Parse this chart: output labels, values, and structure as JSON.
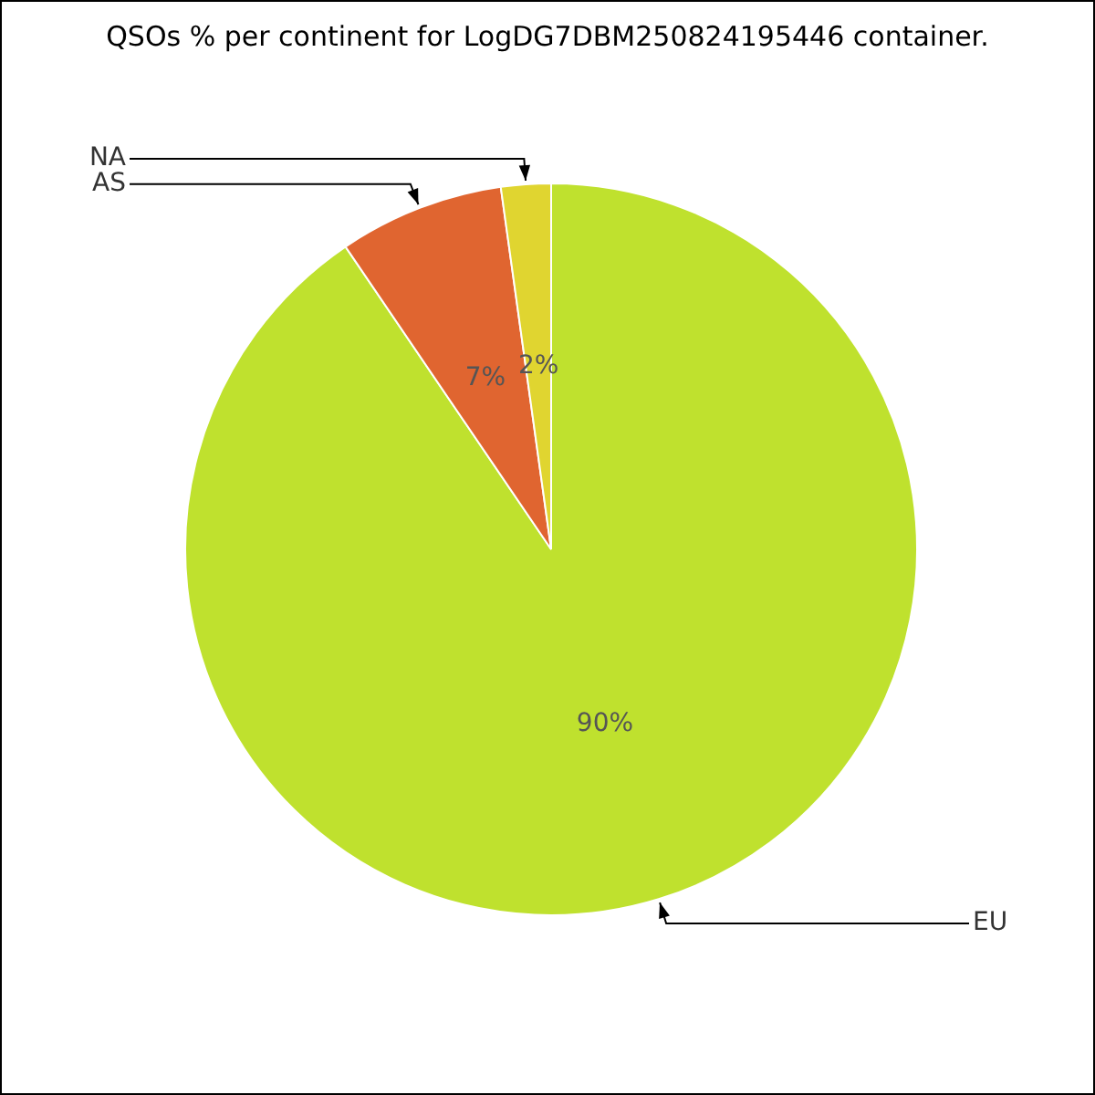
{
  "chart_data": {
    "type": "pie",
    "title": "QSOs % per continent for LogDG7DBM250824195446 container.",
    "categories": [
      "EU",
      "AS",
      "NA"
    ],
    "values": [
      90.5,
      7.3,
      2.2
    ],
    "value_labels": [
      "90%",
      "7%",
      "2%"
    ],
    "colors": [
      "#bfe12e",
      "#e06530",
      "#e0d530"
    ],
    "legend": false
  }
}
